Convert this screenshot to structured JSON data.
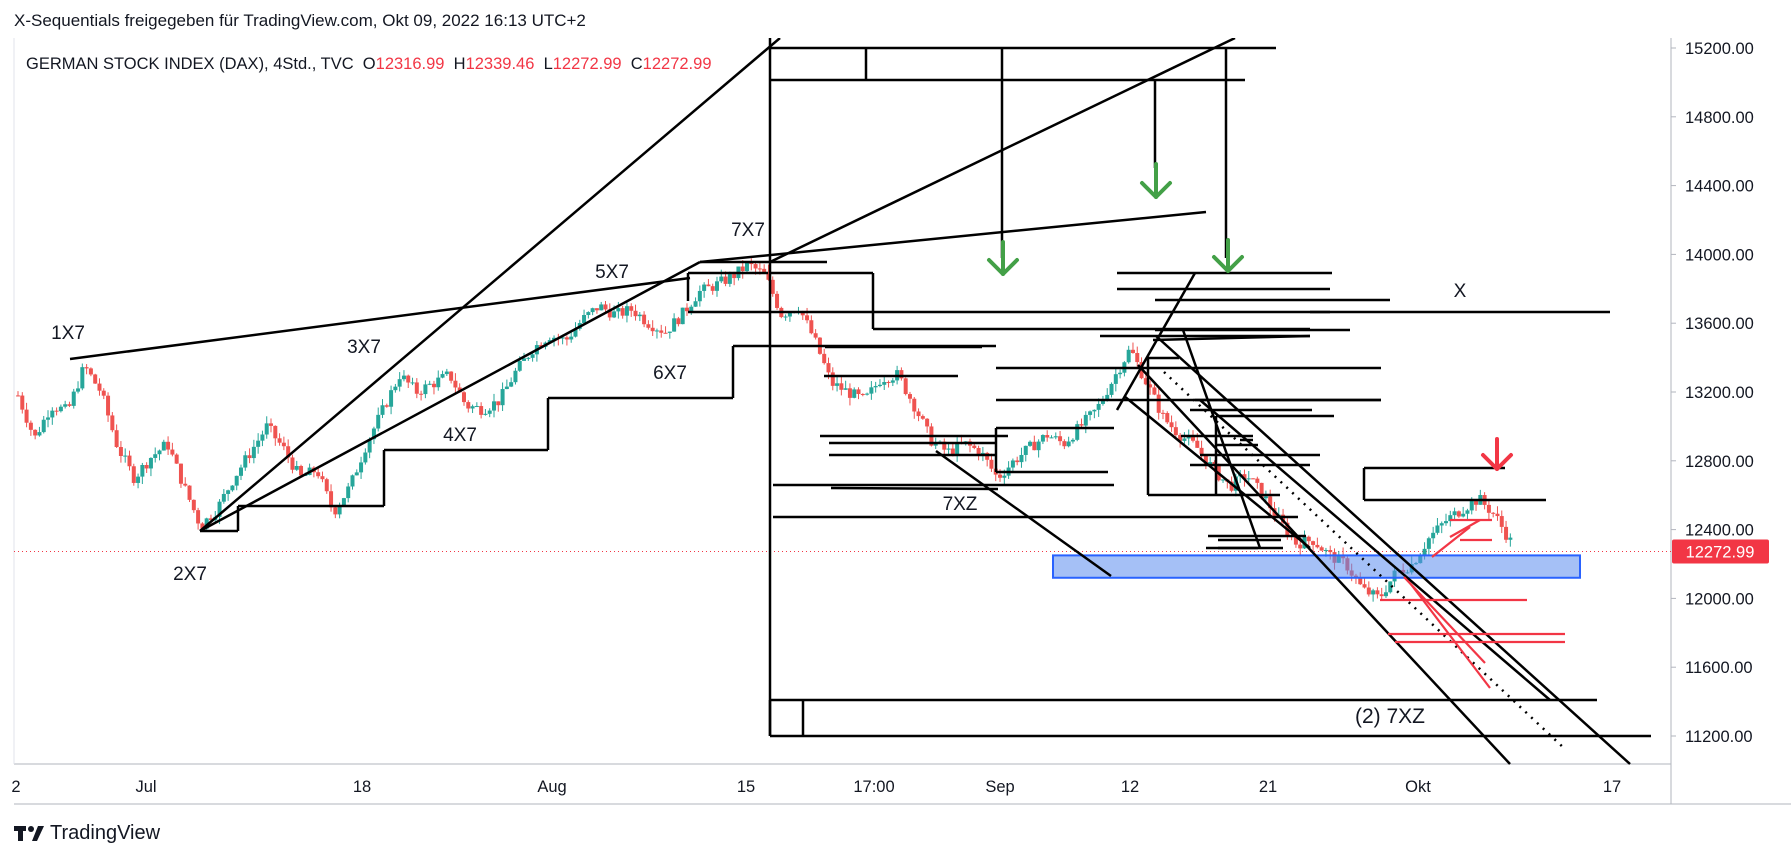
{
  "caption": "X-Sequentials freigegeben für TradingView.com, Okt 09, 2022 16:13 UTC+2",
  "legend": {
    "symbol": "GERMAN STOCK INDEX (DAX), 4Std., TVC",
    "o_label": "O",
    "o_value": "12316.99",
    "h_label": "H",
    "h_value": "12339.46",
    "l_label": "L",
    "l_value": "12272.99",
    "c_label": "C",
    "c_value": "12272.99"
  },
  "footer": {
    "brand": "TradingView"
  },
  "colors": {
    "up": "#26a69a",
    "down": "#ef5350",
    "annotation": "#000000",
    "green_arrow": "#43a047",
    "red_arrow": "#f23645",
    "zone": "#5b8def",
    "price_tag": "#f23645",
    "red_lines": "#f23645"
  },
  "chart_data": {
    "type": "candlestick",
    "title": "GERMAN STOCK INDEX (DAX), 4Std., TVC",
    "ylim": [
      11050,
      15260
    ],
    "y_ticks": [
      "15200.00",
      "14800.00",
      "14400.00",
      "14000.00",
      "13600.00",
      "13200.00",
      "12800.00",
      "12400.00",
      "12000.00",
      "11600.00",
      "11200.00"
    ],
    "x_ticks": [
      "2",
      "Jul",
      "18",
      "Aug",
      "15",
      "17:00",
      "Sep",
      "12",
      "21",
      "Okt",
      "17"
    ],
    "last_price": "12272.99",
    "wave_labels": [
      "1X7",
      "2X7",
      "3X7",
      "4X7",
      "5X7",
      "6X7",
      "7X7",
      "7XZ",
      "(2) 7XZ",
      "X"
    ],
    "support_zone": [
      12120,
      12250
    ],
    "path": [
      [
        0,
        13180
      ],
      [
        6,
        12930
      ],
      [
        12,
        13120
      ],
      [
        18,
        13090
      ],
      [
        24,
        13350
      ],
      [
        30,
        13200
      ],
      [
        36,
        12880
      ],
      [
        42,
        12700
      ],
      [
        48,
        12820
      ],
      [
        54,
        12900
      ],
      [
        60,
        12650
      ],
      [
        66,
        12420
      ],
      [
        72,
        12520
      ],
      [
        78,
        12700
      ],
      [
        84,
        12850
      ],
      [
        90,
        13000
      ],
      [
        96,
        12870
      ],
      [
        102,
        12700
      ],
      [
        108,
        12750
      ],
      [
        114,
        12500
      ],
      [
        120,
        12650
      ],
      [
        126,
        12900
      ],
      [
        132,
        13100
      ],
      [
        138,
        13300
      ],
      [
        144,
        13200
      ],
      [
        150,
        13250
      ],
      [
        156,
        13300
      ],
      [
        162,
        13120
      ],
      [
        168,
        13100
      ],
      [
        174,
        13150
      ],
      [
        180,
        13320
      ],
      [
        186,
        13450
      ],
      [
        192,
        13530
      ],
      [
        198,
        13500
      ],
      [
        204,
        13620
      ],
      [
        210,
        13700
      ],
      [
        216,
        13650
      ],
      [
        222,
        13680
      ],
      [
        228,
        13600
      ],
      [
        234,
        13550
      ],
      [
        240,
        13650
      ],
      [
        246,
        13780
      ],
      [
        252,
        13820
      ],
      [
        258,
        13870
      ],
      [
        264,
        13940
      ],
      [
        270,
        13880
      ],
      [
        276,
        13650
      ],
      [
        282,
        13700
      ],
      [
        288,
        13500
      ],
      [
        294,
        13250
      ],
      [
        300,
        13200
      ],
      [
        306,
        13150
      ],
      [
        312,
        13280
      ],
      [
        318,
        13300
      ],
      [
        324,
        13120
      ],
      [
        330,
        12920
      ],
      [
        336,
        12850
      ],
      [
        342,
        12900
      ],
      [
        348,
        12850
      ],
      [
        354,
        12700
      ],
      [
        360,
        12800
      ],
      [
        366,
        12880
      ],
      [
        372,
        12950
      ],
      [
        378,
        12900
      ],
      [
        384,
        13000
      ],
      [
        390,
        13100
      ],
      [
        396,
        13280
      ],
      [
        402,
        13450
      ],
      [
        408,
        13250
      ],
      [
        414,
        13050
      ],
      [
        420,
        12950
      ],
      [
        426,
        12880
      ],
      [
        432,
        12750
      ],
      [
        438,
        12650
      ],
      [
        444,
        12720
      ],
      [
        450,
        12600
      ],
      [
        456,
        12450
      ],
      [
        462,
        12320
      ],
      [
        468,
        12340
      ],
      [
        474,
        12250
      ],
      [
        480,
        12200
      ],
      [
        486,
        12050
      ],
      [
        492,
        12000
      ],
      [
        498,
        12150
      ],
      [
        504,
        12200
      ],
      [
        510,
        12350
      ],
      [
        516,
        12450
      ],
      [
        522,
        12520
      ],
      [
        528,
        12580
      ],
      [
        534,
        12480
      ],
      [
        540,
        12316
      ]
    ]
  }
}
